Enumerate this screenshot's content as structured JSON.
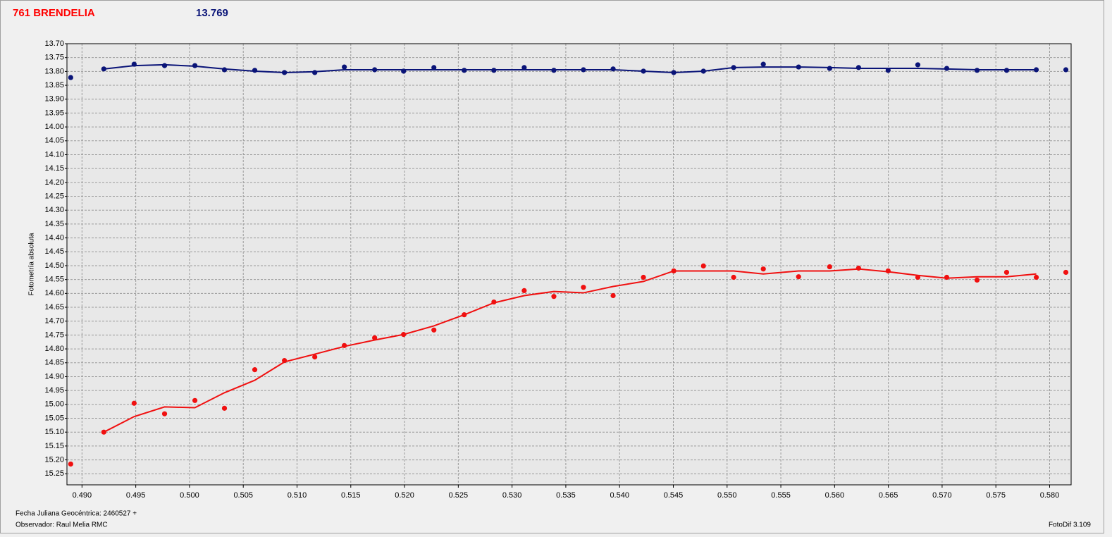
{
  "chart_data": {
    "type": "line",
    "title": "761 BRENDELIA",
    "subtitle": "13.769",
    "y_label": "Fotometría absoluta",
    "x_label": "Fecha Juliana Geocéntrica: 2460527 +",
    "observer": "Observador: Raul Melia RMC",
    "software": "FotoDif 3.109",
    "y_inverted": true,
    "grid": true,
    "xlim": [
      0.4886,
      0.582
    ],
    "ylim": [
      13.7,
      15.29
    ],
    "xticks": [
      {
        "value": 0.49,
        "label": "0.490"
      },
      {
        "value": 0.495,
        "label": "0.495"
      },
      {
        "value": 0.5,
        "label": "0.500"
      },
      {
        "value": 0.505,
        "label": "0.505"
      },
      {
        "value": 0.51,
        "label": "0.510"
      },
      {
        "value": 0.515,
        "label": "0.515"
      },
      {
        "value": 0.52,
        "label": "0.520"
      },
      {
        "value": 0.525,
        "label": "0.525"
      },
      {
        "value": 0.53,
        "label": "0.530"
      },
      {
        "value": 0.535,
        "label": "0.535"
      },
      {
        "value": 0.54,
        "label": "0.540"
      },
      {
        "value": 0.545,
        "label": "0.545"
      },
      {
        "value": 0.55,
        "label": "0.550"
      },
      {
        "value": 0.555,
        "label": "0.555"
      },
      {
        "value": 0.56,
        "label": "0.560"
      },
      {
        "value": 0.565,
        "label": "0.565"
      },
      {
        "value": 0.57,
        "label": "0.570"
      },
      {
        "value": 0.575,
        "label": "0.575"
      },
      {
        "value": 0.58,
        "label": "0.580"
      }
    ],
    "yticks": [
      {
        "value": 13.7,
        "label": "13.70"
      },
      {
        "value": 13.75,
        "label": "13.75"
      },
      {
        "value": 13.8,
        "label": "13.80"
      },
      {
        "value": 13.85,
        "label": "13.85"
      },
      {
        "value": 13.9,
        "label": "13.90"
      },
      {
        "value": 13.95,
        "label": "13.95"
      },
      {
        "value": 14.0,
        "label": "14.00"
      },
      {
        "value": 14.05,
        "label": "14.05"
      },
      {
        "value": 14.1,
        "label": "14.10"
      },
      {
        "value": 14.15,
        "label": "14.15"
      },
      {
        "value": 14.2,
        "label": "14.20"
      },
      {
        "value": 14.25,
        "label": "14.25"
      },
      {
        "value": 14.3,
        "label": "14.30"
      },
      {
        "value": 14.35,
        "label": "14.35"
      },
      {
        "value": 14.4,
        "label": "14.40"
      },
      {
        "value": 14.45,
        "label": "14.45"
      },
      {
        "value": 14.5,
        "label": "14.50"
      },
      {
        "value": 14.55,
        "label": "14.55"
      },
      {
        "value": 14.6,
        "label": "14.60"
      },
      {
        "value": 14.65,
        "label": "14.65"
      },
      {
        "value": 14.7,
        "label": "14.70"
      },
      {
        "value": 14.75,
        "label": "14.75"
      },
      {
        "value": 14.8,
        "label": "14.80"
      },
      {
        "value": 14.85,
        "label": "14.85"
      },
      {
        "value": 14.9,
        "label": "14.90"
      },
      {
        "value": 14.95,
        "label": "14.95"
      },
      {
        "value": 15.0,
        "label": "15.00"
      },
      {
        "value": 15.05,
        "label": "15.05"
      },
      {
        "value": 15.1,
        "label": "15.10"
      },
      {
        "value": 15.15,
        "label": "15.15"
      },
      {
        "value": 15.2,
        "label": "15.20"
      },
      {
        "value": 15.25,
        "label": "15.25"
      }
    ],
    "x": [
      0.48895,
      0.49203,
      0.49485,
      0.49768,
      0.5005,
      0.50325,
      0.50607,
      0.50883,
      0.51165,
      0.5144,
      0.51722,
      0.51991,
      0.52273,
      0.52555,
      0.52831,
      0.53113,
      0.53389,
      0.53664,
      0.5394,
      0.54222,
      0.54504,
      0.5478,
      0.55061,
      0.55337,
      0.55665,
      0.55954,
      0.56223,
      0.56498,
      0.56774,
      0.57043,
      0.57325,
      0.576,
      0.57876,
      0.58151
    ],
    "series": [
      {
        "color": "#0a1478",
        "style": "markers",
        "values": [
          13.822,
          13.791,
          13.774,
          13.779,
          13.779,
          13.794,
          13.796,
          13.804,
          13.804,
          13.784,
          13.794,
          13.799,
          13.786,
          13.796,
          13.796,
          13.786,
          13.796,
          13.794,
          13.791,
          13.799,
          13.804,
          13.799,
          13.786,
          13.774,
          13.784,
          13.789,
          13.786,
          13.796,
          13.776,
          13.789,
          13.796,
          13.796,
          13.794,
          13.794
        ]
      },
      {
        "color": "#0a1478",
        "style": "line",
        "values": [
          null,
          13.791,
          13.779,
          13.776,
          13.781,
          13.791,
          13.799,
          13.804,
          13.801,
          13.794,
          13.794,
          13.794,
          13.794,
          13.794,
          13.794,
          13.794,
          13.794,
          13.794,
          13.794,
          13.799,
          13.804,
          13.799,
          13.786,
          13.784,
          13.784,
          13.786,
          13.789,
          13.789,
          13.789,
          13.791,
          13.794,
          13.794,
          13.794,
          null
        ]
      },
      {
        "color": "#f01010",
        "style": "markers",
        "values": [
          15.215,
          15.1,
          14.996,
          15.034,
          14.986,
          15.014,
          14.875,
          14.842,
          14.829,
          14.788,
          14.76,
          14.748,
          14.732,
          14.677,
          14.631,
          14.59,
          14.611,
          14.578,
          14.608,
          14.542,
          14.519,
          14.501,
          14.542,
          14.512,
          14.54,
          14.504,
          14.509,
          14.519,
          14.542,
          14.542,
          14.552,
          14.524,
          14.542,
          14.524
        ]
      },
      {
        "color": "#f01010",
        "style": "line",
        "values": [
          null,
          15.1,
          15.044,
          15.009,
          15.012,
          14.958,
          14.913,
          14.847,
          14.819,
          14.791,
          14.768,
          14.748,
          14.717,
          14.677,
          14.634,
          14.608,
          14.593,
          14.598,
          14.575,
          14.557,
          14.519,
          14.519,
          14.519,
          14.53,
          14.519,
          14.519,
          14.512,
          14.522,
          14.535,
          14.545,
          14.54,
          14.54,
          14.53,
          null
        ]
      }
    ]
  }
}
